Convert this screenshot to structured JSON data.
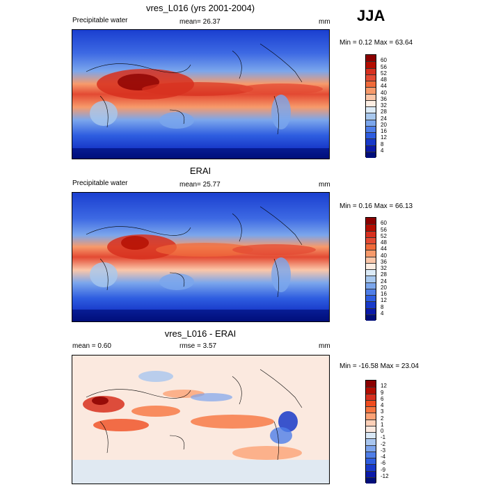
{
  "season_label": "JJA",
  "units": "mm",
  "panels": [
    {
      "id": "model",
      "title": "vres_L016 (yrs 2001-2004)",
      "left_label": "Precipitable water",
      "center_label": "mean=  26.37",
      "units": "mm",
      "minmax": "Min =   0.12 Max =  63.64"
    },
    {
      "id": "obs",
      "title": "ERAI",
      "left_label": "Precipitable water",
      "center_label": "mean=  25.77",
      "units": "mm",
      "minmax": "Min =   0.16 Max =  66.13"
    },
    {
      "id": "diff",
      "title": "vres_L016 - ERAI",
      "left_label": "mean =    0.60",
      "center_label": "rmse =    3.57",
      "units": "mm",
      "minmax": "Min = -16.58 Max =  23.04"
    }
  ],
  "colorbars": {
    "absolute": {
      "levels": [
        "60",
        "56",
        "52",
        "48",
        "44",
        "40",
        "36",
        "32",
        "28",
        "24",
        "20",
        "16",
        "12",
        "8",
        "4"
      ],
      "colors": [
        "#8b0000",
        "#b30d00",
        "#d7301f",
        "#e34a33",
        "#f06a3a",
        "#f79a6b",
        "#fbc6a8",
        "#fdeee3",
        "#dcebf7",
        "#a8c8ee",
        "#7ba6ec",
        "#4f7ee8",
        "#2e5de0",
        "#1839c9",
        "#0b1aa8",
        "#000e7a"
      ]
    },
    "difference": {
      "levels": [
        "12",
        "9",
        "6",
        "4",
        "3",
        "2",
        "1",
        "0",
        "-1",
        "-2",
        "-3",
        "-4",
        "-6",
        "-9",
        "-12"
      ],
      "colors": [
        "#8b0000",
        "#b30d00",
        "#d7301f",
        "#f04c1f",
        "#f7743f",
        "#fca276",
        "#fdd0b8",
        "#fbe9df",
        "#d9e8f6",
        "#a9c6ef",
        "#7da4ec",
        "#4f7ee8",
        "#2e5de0",
        "#1839c9",
        "#0b1aa8",
        "#000e7a"
      ]
    }
  },
  "chart_data": [
    {
      "type": "heatmap",
      "title": "vres_L016 (yrs 2001-2004)",
      "variable": "Precipitable water",
      "units": "mm",
      "season": "JJA",
      "mean": 26.37,
      "min": 0.12,
      "max": 63.64,
      "contour_levels": [
        4,
        8,
        12,
        16,
        20,
        24,
        28,
        32,
        36,
        40,
        44,
        48,
        52,
        56,
        60
      ]
    },
    {
      "type": "heatmap",
      "title": "ERAI",
      "variable": "Precipitable water",
      "units": "mm",
      "season": "JJA",
      "mean": 25.77,
      "min": 0.16,
      "max": 66.13,
      "contour_levels": [
        4,
        8,
        12,
        16,
        20,
        24,
        28,
        32,
        36,
        40,
        44,
        48,
        52,
        56,
        60
      ]
    },
    {
      "type": "heatmap",
      "title": "vres_L016 - ERAI",
      "units": "mm",
      "season": "JJA",
      "mean": 0.6,
      "rmse": 3.57,
      "min": -16.58,
      "max": 23.04,
      "contour_levels": [
        -12,
        -9,
        -6,
        -4,
        -3,
        -2,
        -1,
        0,
        1,
        2,
        3,
        4,
        6,
        9,
        12
      ]
    }
  ]
}
